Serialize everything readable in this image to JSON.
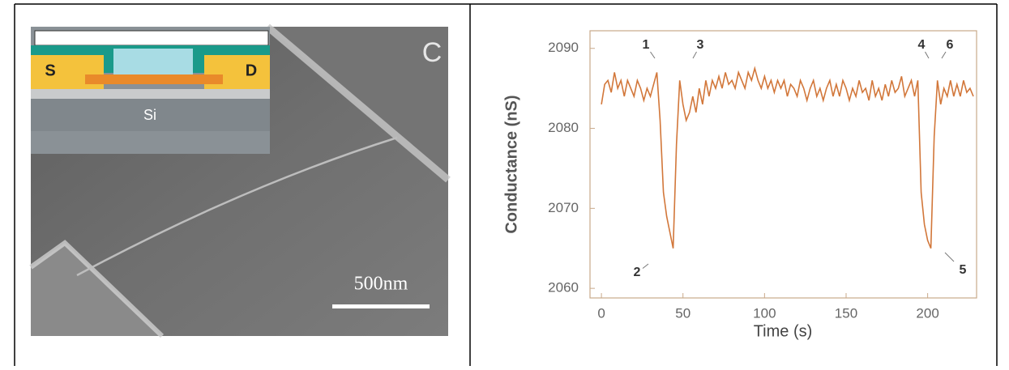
{
  "image_panel": {
    "panel_label": "C",
    "source_label": "S",
    "drain_label": "D",
    "substrate_label": "Si",
    "scale_bar": "500nm"
  },
  "chart_data": {
    "type": "line",
    "y_label": "Conductance (nS)",
    "x_label": "Time (s)",
    "xlim": [
      -7,
      230
    ],
    "ylim": [
      2058.8,
      2092.2
    ],
    "xticks": [
      0,
      50,
      100,
      150,
      200
    ],
    "yticks": [
      2060,
      2070,
      2080,
      2090
    ],
    "annotations": [
      "1",
      "2",
      "3",
      "4",
      "5",
      "6"
    ],
    "x": [
      0,
      2,
      4,
      6,
      8,
      10,
      12,
      14,
      16,
      18,
      20,
      22,
      24,
      26,
      28,
      30,
      32,
      34,
      36,
      38,
      40,
      42,
      44,
      46,
      48,
      50,
      52,
      54,
      56,
      58,
      60,
      62,
      64,
      66,
      68,
      70,
      72,
      74,
      76,
      78,
      80,
      82,
      84,
      86,
      88,
      90,
      92,
      94,
      96,
      98,
      100,
      102,
      104,
      106,
      108,
      110,
      112,
      114,
      116,
      118,
      120,
      122,
      124,
      126,
      128,
      130,
      132,
      134,
      136,
      138,
      140,
      142,
      144,
      146,
      148,
      150,
      152,
      154,
      156,
      158,
      160,
      162,
      164,
      166,
      168,
      170,
      172,
      174,
      176,
      178,
      180,
      182,
      184,
      186,
      188,
      190,
      192,
      194,
      196,
      198,
      200,
      202,
      204,
      206,
      208,
      210,
      212,
      214,
      216,
      218,
      220,
      222,
      224,
      226,
      228
    ],
    "series": [
      {
        "color": "#d2773a",
        "values": [
          2083,
          2085.5,
          2086,
          2084.5,
          2087,
          2085,
          2086,
          2084,
          2086,
          2085,
          2084,
          2086,
          2085,
          2083.5,
          2085,
          2084,
          2085.5,
          2087,
          2081,
          2072,
          2069,
          2067,
          2065,
          2078,
          2086,
          2083,
          2081,
          2082,
          2084,
          2082,
          2085,
          2083,
          2086,
          2084,
          2086,
          2085,
          2086.5,
          2085,
          2087,
          2085.5,
          2086,
          2085,
          2087,
          2086,
          2085,
          2087,
          2086,
          2087.5,
          2086,
          2085,
          2086.5,
          2085,
          2086,
          2084.5,
          2086,
          2085,
          2086,
          2084,
          2085.5,
          2085,
          2084,
          2086,
          2085,
          2083.5,
          2085,
          2086,
          2084,
          2085,
          2083.5,
          2085,
          2086,
          2084,
          2085.5,
          2084,
          2086,
          2085,
          2083.5,
          2085,
          2084,
          2086,
          2084.5,
          2085,
          2083.5,
          2086,
          2084,
          2085,
          2083.5,
          2085.5,
          2084,
          2086,
          2084.5,
          2085,
          2086.5,
          2084,
          2085,
          2086,
          2084,
          2086,
          2072,
          2068,
          2066,
          2065,
          2079,
          2086,
          2083,
          2085,
          2084,
          2086,
          2084,
          2085.5,
          2084,
          2086,
          2084.5,
          2085,
          2084
        ]
      }
    ]
  }
}
